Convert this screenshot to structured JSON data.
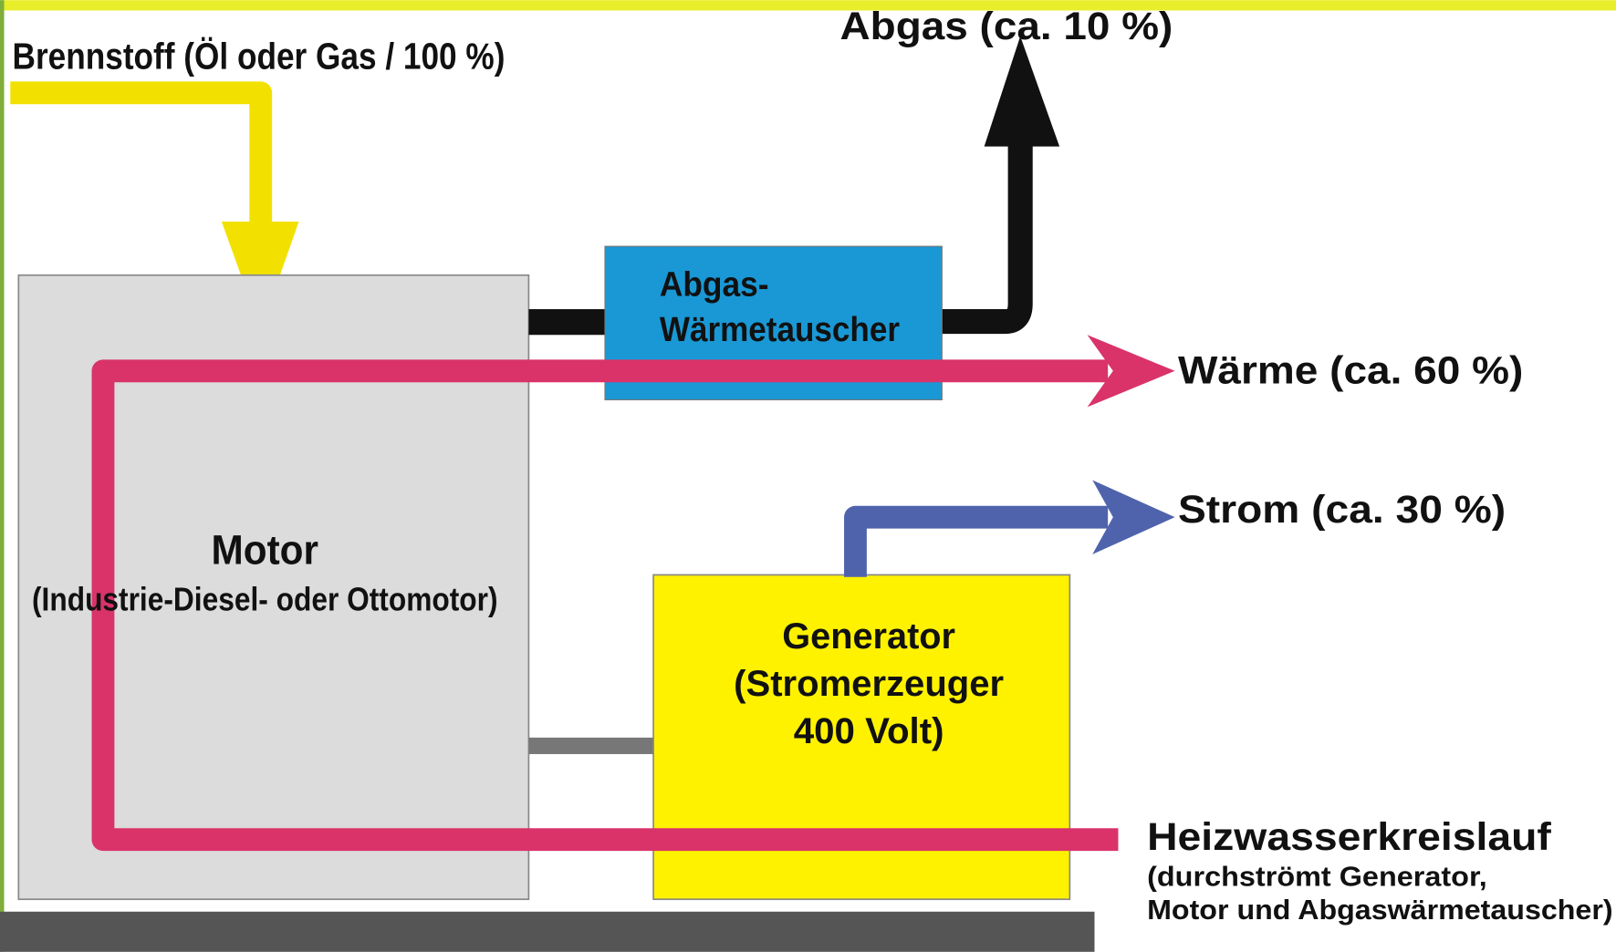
{
  "input": {
    "label": "Brennstoff (Öl oder Gas / 100 %)"
  },
  "motor": {
    "title": "Motor",
    "subtitle": "(Industrie-Diesel- oder Ottomotor)"
  },
  "heat_exchanger": {
    "lines": [
      "Abgas-",
      "Wärmetauscher"
    ]
  },
  "generator": {
    "lines": [
      "Generator",
      "(Stromerzeuger",
      "400 Volt)"
    ]
  },
  "outputs": {
    "exhaust": "Abgas (ca. 10 %)",
    "heat": "Wärme (ca. 60 %)",
    "power": "Strom (ca. 30 %)"
  },
  "circuit": {
    "title": "Heizwasserkreislauf",
    "lines": [
      "(durchströmt Generator,",
      "Motor und Abgaswärmetauscher)"
    ]
  }
}
